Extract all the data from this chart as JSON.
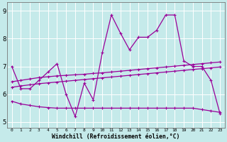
{
  "xlabel": "Windchill (Refroidissement éolien,°C)",
  "xlim": [
    -0.5,
    23.5
  ],
  "ylim": [
    4.8,
    9.3
  ],
  "yticks": [
    5,
    6,
    7,
    8,
    9
  ],
  "xticks": [
    0,
    1,
    2,
    3,
    4,
    5,
    6,
    7,
    8,
    9,
    10,
    11,
    12,
    13,
    14,
    15,
    16,
    17,
    18,
    19,
    20,
    21,
    22,
    23
  ],
  "bg_color": "#c5eaea",
  "line_color": "#990099",
  "grid_color": "#ffffff",
  "series_main": [
    7.0,
    6.2,
    6.2,
    6.5,
    6.8,
    7.1,
    6.0,
    5.2,
    6.4,
    5.8,
    7.5,
    8.85,
    8.2,
    7.6,
    8.05,
    8.05,
    8.3,
    8.85,
    8.85,
    7.2,
    7.0,
    7.0,
    6.5,
    5.3
  ],
  "series_reg1": [
    6.45,
    6.5,
    6.55,
    6.6,
    6.63,
    6.66,
    6.68,
    6.7,
    6.72,
    6.75,
    6.77,
    6.8,
    6.83,
    6.86,
    6.89,
    6.92,
    6.95,
    6.98,
    7.01,
    7.04,
    7.07,
    7.1,
    7.13,
    7.16
  ],
  "series_reg2": [
    6.25,
    6.3,
    6.34,
    6.38,
    6.41,
    6.44,
    6.47,
    6.5,
    6.53,
    6.56,
    6.59,
    6.62,
    6.65,
    6.68,
    6.71,
    6.74,
    6.77,
    6.8,
    6.83,
    6.86,
    6.89,
    6.92,
    6.95,
    6.98
  ],
  "series_flat": [
    5.75,
    5.65,
    5.6,
    5.55,
    5.52,
    5.5,
    5.5,
    5.5,
    5.5,
    5.5,
    5.5,
    5.5,
    5.5,
    5.5,
    5.5,
    5.5,
    5.5,
    5.5,
    5.5,
    5.5,
    5.5,
    5.45,
    5.4,
    5.35
  ],
  "linewidth": 0.9,
  "markersize": 3.5
}
